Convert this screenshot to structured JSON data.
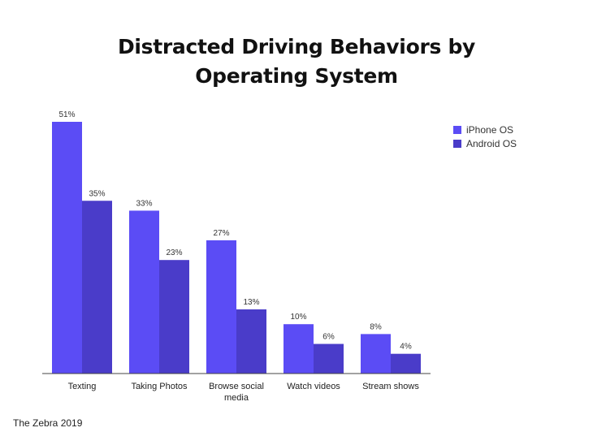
{
  "chart_data": {
    "type": "bar",
    "title": [
      "Distracted Driving Behaviors by",
      "Operating System"
    ],
    "categories": [
      "Texting",
      "Taking Photos",
      "Browse social media",
      "Watch videos",
      "Stream shows"
    ],
    "series": [
      {
        "name": "iPhone OS",
        "values": [
          51,
          33,
          27,
          10,
          8
        ],
        "labels": [
          "51%",
          "33%",
          "27%",
          "10%",
          "8%"
        ],
        "color": "#5b4cf5"
      },
      {
        "name": "Android OS",
        "values": [
          35,
          23,
          13,
          6,
          4
        ],
        "labels": [
          "35%",
          "23%",
          "13%",
          "6%",
          "4%"
        ],
        "color": "#4a3cc9"
      }
    ],
    "ylim": [
      0,
      51
    ],
    "legend_position": "top-right",
    "grid": false,
    "source": "The Zebra 2019"
  }
}
